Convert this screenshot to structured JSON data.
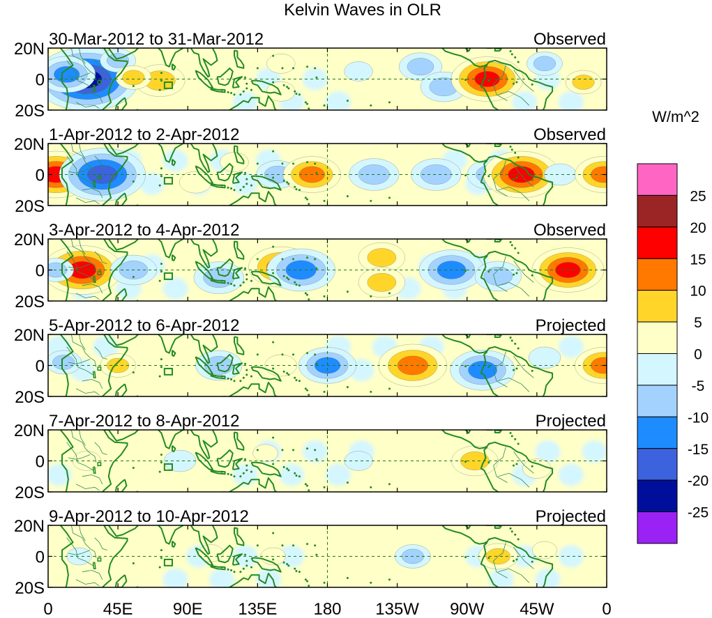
{
  "chart_data": {
    "type": "heatmap",
    "title": "Kelvin Waves in OLR",
    "colorbar": {
      "unit_label": "W/m^2",
      "tick_labels": [
        "25",
        "20",
        "15",
        "10",
        "5",
        "0",
        "-5",
        "-10",
        "-15",
        "-20",
        "-25"
      ],
      "colors": [
        "#ff66c4",
        "#9b2525",
        "#ff0000",
        "#ff7800",
        "#ffd52a",
        "#ffffc8",
        "#d4f6ff",
        "#a4d2ff",
        "#1e8cff",
        "#3d62dd",
        "#000f9b",
        "#9a22f5"
      ]
    },
    "x_axis": {
      "tick_labels": [
        "0",
        "45E",
        "90E",
        "135E",
        "180",
        "135W",
        "90W",
        "45W",
        "0"
      ],
      "range_lon": [
        0,
        360
      ]
    },
    "y_axis": {
      "tick_labels": [
        "20N",
        "0",
        "20S"
      ],
      "range_lat": [
        -20,
        20
      ]
    },
    "panels": [
      {
        "date_range": "30-Mar-2012 to 31-Mar-2012",
        "status": "Observed",
        "features": [
          {
            "lon": 25,
            "lat": 0,
            "value": -25
          },
          {
            "lon": 12,
            "lat": 3,
            "value": -12
          },
          {
            "lon": 45,
            "lat": 12,
            "value": -6
          },
          {
            "lon": 72,
            "lat": -1,
            "value": 10
          },
          {
            "lon": 55,
            "lat": 1,
            "value": 6
          },
          {
            "lon": 150,
            "lat": 10,
            "value": 4
          },
          {
            "lon": 150,
            "lat": -8,
            "value": 4
          },
          {
            "lon": 200,
            "lat": 5,
            "value": -4
          },
          {
            "lon": 240,
            "lat": 8,
            "value": -8
          },
          {
            "lon": 255,
            "lat": -5,
            "value": -9
          },
          {
            "lon": 283,
            "lat": 0,
            "value": 16
          },
          {
            "lon": 320,
            "lat": 10,
            "value": -6
          },
          {
            "lon": 345,
            "lat": -2,
            "value": 6
          }
        ]
      },
      {
        "date_range": "1-Apr-2012 to 2-Apr-2012",
        "status": "Observed",
        "features": [
          {
            "lon": 5,
            "lat": 0,
            "value": 17
          },
          {
            "lon": 35,
            "lat": 0,
            "value": -20
          },
          {
            "lon": 95,
            "lat": -5,
            "value": 5
          },
          {
            "lon": 120,
            "lat": 8,
            "value": 4
          },
          {
            "lon": 148,
            "lat": 0,
            "value": -8
          },
          {
            "lon": 170,
            "lat": 0,
            "value": 12
          },
          {
            "lon": 210,
            "lat": 0,
            "value": -10
          },
          {
            "lon": 250,
            "lat": 0,
            "value": -10
          },
          {
            "lon": 285,
            "lat": 0,
            "value": -9
          },
          {
            "lon": 305,
            "lat": 0,
            "value": 17
          },
          {
            "lon": 330,
            "lat": 0,
            "value": -5
          },
          {
            "lon": 358,
            "lat": 0,
            "value": 12
          }
        ]
      },
      {
        "date_range": "3-Apr-2012 to 4-Apr-2012",
        "status": "Observed",
        "features": [
          {
            "lon": 22,
            "lat": 0,
            "value": 18
          },
          {
            "lon": 5,
            "lat": 0,
            "value": -6
          },
          {
            "lon": 55,
            "lat": 0,
            "value": -9
          },
          {
            "lon": 110,
            "lat": -5,
            "value": -10
          },
          {
            "lon": 150,
            "lat": 2,
            "value": 14
          },
          {
            "lon": 163,
            "lat": 0,
            "value": -15
          },
          {
            "lon": 215,
            "lat": 8,
            "value": 9
          },
          {
            "lon": 215,
            "lat": -8,
            "value": 9
          },
          {
            "lon": 260,
            "lat": 0,
            "value": -14
          },
          {
            "lon": 290,
            "lat": -4,
            "value": -9
          },
          {
            "lon": 335,
            "lat": 0,
            "value": 16
          }
        ]
      },
      {
        "date_range": "5-Apr-2012 to 6-Apr-2012",
        "status": "Projected",
        "features": [
          {
            "lon": 10,
            "lat": 2,
            "value": -6
          },
          {
            "lon": 45,
            "lat": 0,
            "value": 6
          },
          {
            "lon": 110,
            "lat": 0,
            "value": -9
          },
          {
            "lon": 150,
            "lat": 0,
            "value": 5
          },
          {
            "lon": 180,
            "lat": 0,
            "value": -12
          },
          {
            "lon": 235,
            "lat": 0,
            "value": 15
          },
          {
            "lon": 280,
            "lat": -3,
            "value": -14
          },
          {
            "lon": 320,
            "lat": 5,
            "value": -5
          },
          {
            "lon": 358,
            "lat": 0,
            "value": 12
          }
        ]
      },
      {
        "date_range": "7-Apr-2012 to 8-Apr-2012",
        "status": "Projected",
        "features": [
          {
            "lon": 25,
            "lat": 0,
            "value": 4
          },
          {
            "lon": 85,
            "lat": 0,
            "value": -5
          },
          {
            "lon": 140,
            "lat": 5,
            "value": 3
          },
          {
            "lon": 200,
            "lat": 0,
            "value": -4
          },
          {
            "lon": 275,
            "lat": 0,
            "value": 9
          },
          {
            "lon": 315,
            "lat": -5,
            "value": 4
          }
        ]
      },
      {
        "date_range": "9-Apr-2012 to 10-Apr-2012",
        "status": "Projected",
        "features": [
          {
            "lon": 20,
            "lat": 0,
            "value": -3
          },
          {
            "lon": 105,
            "lat": 2,
            "value": 3
          },
          {
            "lon": 145,
            "lat": 0,
            "value": 3
          },
          {
            "lon": 235,
            "lat": 0,
            "value": -6
          },
          {
            "lon": 290,
            "lat": 0,
            "value": 7
          },
          {
            "lon": 320,
            "lat": 4,
            "value": 3
          }
        ]
      }
    ]
  }
}
